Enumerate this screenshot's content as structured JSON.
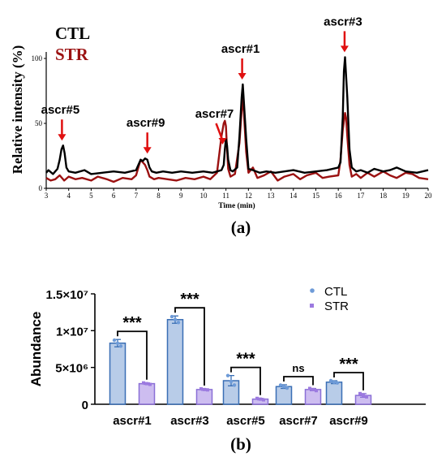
{
  "colors": {
    "ctl": "#000000",
    "str": "#9b1111",
    "arrow": "#e01010",
    "bar_ctl_fill": "#b8cce8",
    "bar_ctl_edge": "#3a6fb5",
    "bar_str_fill": "#cdbdf0",
    "bar_str_edge": "#8a6fd6",
    "dot_ctl": "#6e9bd8",
    "dot_str": "#9c7ae0"
  },
  "chart_data": [
    {
      "type": "line",
      "panel_label": "(a)",
      "xlabel": "Time (min)",
      "ylabel": "Relative intensity (%)",
      "xlim": [
        3,
        20
      ],
      "ylim": [
        0,
        105
      ],
      "xticks": [
        "3",
        "4",
        "5",
        "6",
        "7",
        "8",
        "9",
        "10",
        "11",
        "12",
        "13",
        "14",
        "15",
        "16",
        "17",
        "18",
        "19",
        "20"
      ],
      "yticks": [
        "0",
        "50",
        "100"
      ],
      "legend": {
        "placement": "top-left",
        "entries": [
          "CTL",
          "STR"
        ]
      },
      "series": [
        {
          "name": "CTL",
          "x": [
            3.0,
            3.1,
            3.3,
            3.5,
            3.6,
            3.68,
            3.75,
            3.82,
            3.9,
            4.0,
            4.3,
            4.7,
            5.0,
            5.5,
            6.0,
            6.5,
            7.0,
            7.1,
            7.2,
            7.3,
            7.4,
            7.5,
            7.6,
            7.7,
            7.9,
            8.2,
            8.6,
            9.0,
            9.5,
            10.0,
            10.4,
            10.8,
            10.9,
            10.95,
            11.0,
            11.05,
            11.1,
            11.2,
            11.3,
            11.5,
            11.6,
            11.7,
            11.75,
            11.8,
            11.9,
            12.0,
            12.2,
            12.5,
            12.8,
            13.2,
            13.6,
            14.0,
            14.5,
            15.0,
            15.5,
            16.0,
            16.1,
            16.2,
            16.25,
            16.3,
            16.4,
            16.5,
            16.6,
            16.8,
            17.0,
            17.3,
            17.6,
            18.0,
            18.3,
            18.6,
            19.0,
            19.5,
            20.0
          ],
          "values": [
            12,
            14,
            11,
            15,
            22,
            30,
            33,
            27,
            16,
            13,
            12,
            14,
            11,
            12,
            13,
            12,
            14,
            18,
            22,
            21,
            23,
            22,
            16,
            13,
            12,
            13,
            12,
            13,
            12,
            13,
            12,
            14,
            18,
            30,
            38,
            33,
            22,
            14,
            13,
            16,
            40,
            70,
            80,
            66,
            38,
            15,
            14,
            12,
            13,
            12,
            13,
            14,
            12,
            13,
            14,
            16,
            20,
            55,
            90,
            101,
            70,
            30,
            16,
            13,
            14,
            12,
            15,
            13,
            14,
            16,
            13,
            12,
            14
          ]
        },
        {
          "name": "STR",
          "x": [
            3.0,
            3.2,
            3.4,
            3.6,
            3.8,
            4.0,
            4.3,
            4.6,
            5.0,
            5.3,
            5.7,
            6.0,
            6.4,
            6.8,
            7.0,
            7.1,
            7.2,
            7.3,
            7.4,
            7.5,
            7.6,
            7.8,
            8.0,
            8.4,
            8.8,
            9.2,
            9.6,
            10.0,
            10.3,
            10.6,
            10.8,
            10.9,
            10.95,
            11.0,
            11.05,
            11.1,
            11.2,
            11.4,
            11.6,
            11.7,
            11.75,
            11.8,
            11.9,
            12.0,
            12.2,
            12.4,
            12.7,
            13.0,
            13.3,
            13.6,
            14.0,
            14.3,
            14.6,
            15.0,
            15.3,
            15.6,
            16.0,
            16.1,
            16.2,
            16.3,
            16.35,
            16.4,
            16.5,
            16.6,
            16.8,
            17.0,
            17.3,
            17.6,
            18.0,
            18.3,
            18.6,
            19.0,
            19.3,
            19.6,
            20.0
          ],
          "values": [
            8,
            6,
            7,
            10,
            6,
            9,
            7,
            8,
            6,
            9,
            7,
            5,
            8,
            7,
            10,
            16,
            22,
            20,
            18,
            14,
            9,
            7,
            8,
            7,
            6,
            8,
            7,
            9,
            7,
            12,
            40,
            50,
            52,
            48,
            30,
            15,
            9,
            11,
            35,
            60,
            70,
            58,
            28,
            12,
            16,
            8,
            10,
            13,
            6,
            9,
            11,
            7,
            10,
            12,
            8,
            9,
            10,
            22,
            45,
            58,
            54,
            40,
            18,
            9,
            11,
            8,
            12,
            9,
            13,
            10,
            8,
            12,
            11,
            8,
            7
          ]
        }
      ],
      "annotations": [
        {
          "text": "ascr#5",
          "x": 3.7
        },
        {
          "text": "ascr#9",
          "x": 7.5
        },
        {
          "text": "ascr#7",
          "x": 10.85
        },
        {
          "text": "ascr#1",
          "x": 11.72
        },
        {
          "text": "ascr#3",
          "x": 16.28
        }
      ]
    },
    {
      "type": "bar",
      "panel_label": "(b)",
      "ylabel": "Abundance",
      "ylim": [
        0,
        15000000
      ],
      "yticks": [
        "0",
        "5×10⁶",
        "1×10⁷",
        "1.5×10⁷"
      ],
      "ytick_values": [
        0,
        5000000,
        10000000,
        15000000
      ],
      "categories": [
        "ascr#1",
        "ascr#3",
        "ascr#5",
        "ascr#7",
        "ascr#9"
      ],
      "legend": {
        "placement": "top-right",
        "entries": [
          "CTL",
          "STR"
        ]
      },
      "series": [
        {
          "name": "CTL",
          "values": [
            8300000,
            11500000,
            3200000,
            2400000,
            3000000
          ],
          "errors": [
            500000,
            500000,
            700000,
            250000,
            200000
          ],
          "points": [
            [
              8700000,
              8300000,
              7900000
            ],
            [
              11900000,
              11500000,
              11100000
            ],
            [
              3900000,
              3100000,
              2600000
            ],
            [
              2600000,
              2400000,
              2200000
            ],
            [
              3200000,
              3000000,
              2900000
            ]
          ]
        },
        {
          "name": "STR",
          "values": [
            2800000,
            2000000,
            700000,
            2000000,
            1200000
          ],
          "errors": [
            100000,
            100000,
            100000,
            150000,
            250000
          ],
          "points": [
            [
              2900000,
              2800000,
              2700000
            ],
            [
              2100000,
              2000000,
              1950000
            ],
            [
              800000,
              700000,
              600000
            ],
            [
              2150000,
              2000000,
              1850000
            ],
            [
              1450000,
              1200000,
              1000000
            ]
          ]
        }
      ],
      "significance": [
        "***",
        "***",
        "***",
        "ns",
        "***"
      ]
    }
  ]
}
